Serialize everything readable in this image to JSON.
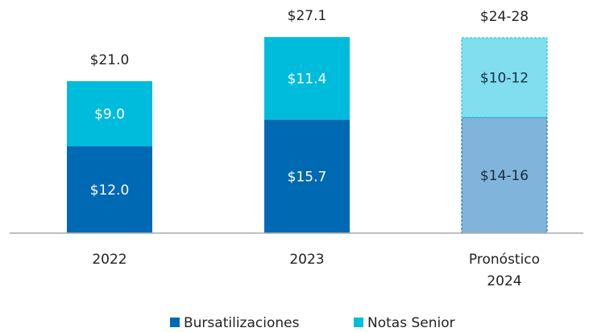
{
  "chart_data": {
    "type": "stacked_bar",
    "categories": [
      "2022",
      "2023",
      "Pronóstico 2024"
    ],
    "series": [
      {
        "name": "Bursatilizaciones",
        "color": "#0069b4",
        "values": [
          12.0,
          15.7,
          16
        ],
        "value_labels": [
          "$12.0",
          "$15.7",
          "$14-16"
        ]
      },
      {
        "name": "Notas Senior",
        "color": "#00bcdc",
        "values": [
          9.0,
          11.4,
          11
        ],
        "value_labels": [
          "$9.0",
          "$11.4",
          "$10-12"
        ]
      }
    ],
    "totals": [
      21.0,
      27.1,
      27
    ],
    "total_labels": [
      "$21.0",
      "$27.1",
      "$24-28"
    ],
    "forecast": [
      false,
      false,
      true
    ],
    "ylim": [
      0,
      30
    ],
    "legend": "bottom"
  }
}
